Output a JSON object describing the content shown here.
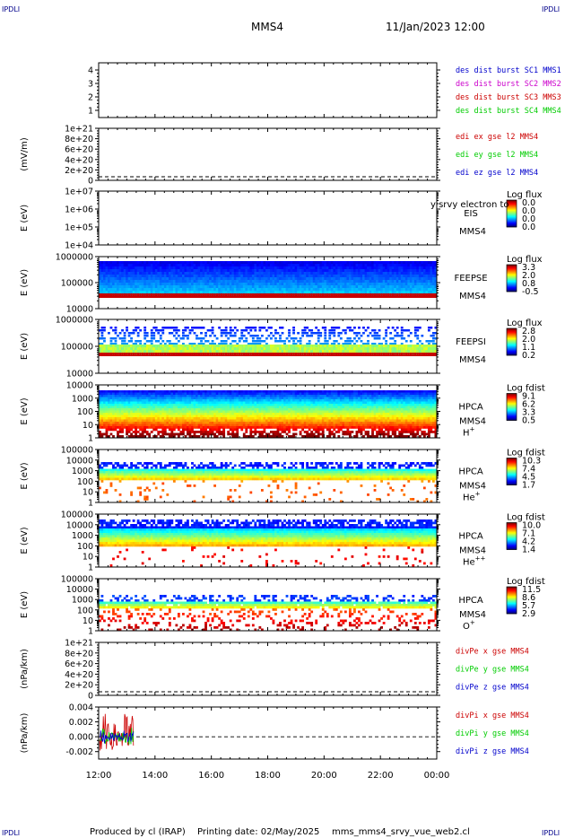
{
  "header": {
    "corner_label": "IPDLI",
    "spacecraft": "MMS4",
    "datetime": "11/Jan/2023 12:00"
  },
  "footer": {
    "produced_by": "Produced by cl (IRAP)",
    "printing_date": "Printing date: 02/May/2025",
    "script_name": "mms_mms4_srvy_vue_web2.cl"
  },
  "colors": {
    "blue": "#0000cc",
    "magenta": "#cc00cc",
    "red": "#cc0000",
    "green": "#00cc00"
  },
  "chart_data": [
    {
      "type": "line",
      "id": "des-dist",
      "yticks": [
        "1",
        "2",
        "3",
        "4"
      ],
      "ylim": [
        0.5,
        4.5
      ],
      "ylabel": "",
      "legend": [
        {
          "text": "des dist burst SC1 MMS1",
          "color": "#0000cc"
        },
        {
          "text": "des dist burst SC2 MMS2",
          "color": "#cc00cc"
        },
        {
          "text": "des dist burst SC3 MMS3",
          "color": "#cc0000"
        },
        {
          "text": "des dist burst SC4 MMS4",
          "color": "#00cc00"
        }
      ]
    },
    {
      "type": "line",
      "id": "edi",
      "ylabel": "(mV/m)",
      "yticks": [
        "0",
        "2e+20",
        "4e+20",
        "6e+20",
        "8e+20",
        "1e+21"
      ],
      "ylim": [
        0,
        1e+21
      ],
      "zero_line": true,
      "legend": [
        {
          "text": "edi ex gse l2 MMS4",
          "color": "#cc0000"
        },
        {
          "text": "edi ey gse l2 MMS4",
          "color": "#00cc00"
        },
        {
          "text": "edi ez gse l2 MMS4",
          "color": "#0000cc"
        }
      ]
    },
    {
      "type": "heatmap",
      "id": "eis",
      "ylabel": "E (eV)",
      "yticks": [
        "1e+04",
        "1e+05",
        "1e+06",
        "1e+07"
      ],
      "labels": [
        "EIS",
        "MMS4"
      ],
      "overlay_text": "y srvy electron to",
      "colorbar": {
        "title": "Log flux",
        "ticks": [
          "0.0",
          "0.0",
          "0.0",
          "0.0"
        ]
      },
      "fill": "empty"
    },
    {
      "type": "heatmap",
      "id": "feeps-e",
      "ylabel": "E (eV)",
      "yticks": [
        "10000",
        "100000",
        "1000000"
      ],
      "labels": [
        "FEEPSE",
        "MMS4"
      ],
      "colorbar": {
        "title": "Log flux",
        "ticks": [
          "3.3",
          "2.0",
          "0.8",
          "-0.5"
        ]
      },
      "fill": "feepse"
    },
    {
      "type": "heatmap",
      "id": "feeps-i",
      "ylabel": "E (eV)",
      "yticks": [
        "10000",
        "100000",
        "1000000"
      ],
      "labels": [
        "FEEPSI",
        "MMS4"
      ],
      "colorbar": {
        "title": "Log flux",
        "ticks": [
          "2.8",
          "2.0",
          "1.1",
          "0.2"
        ]
      },
      "fill": "feepsi"
    },
    {
      "type": "heatmap",
      "id": "hpca-h",
      "ylabel": "E (eV)",
      "yticks": [
        "1",
        "10",
        "100",
        "1000",
        "10000"
      ],
      "labels": [
        "HPCA",
        "MMS4"
      ],
      "species": {
        "base": "H",
        "sup": "+"
      },
      "colorbar": {
        "title": "Log fdist",
        "ticks": [
          "9.1",
          "6.2",
          "3.3",
          "0.5"
        ]
      },
      "fill": "hplus"
    },
    {
      "type": "heatmap",
      "id": "hpca-he",
      "ylabel": "E (eV)",
      "yticks": [
        "1",
        "10",
        "100",
        "1000",
        "10000",
        "100000"
      ],
      "labels": [
        "HPCA",
        "MMS4"
      ],
      "species": {
        "base": "He",
        "sup": "+"
      },
      "colorbar": {
        "title": "Log fdist",
        "ticks": [
          "10.3",
          "7.4",
          "4.5",
          "1.7"
        ]
      },
      "fill": "heplus"
    },
    {
      "type": "heatmap",
      "id": "hpca-hepp",
      "ylabel": "E (eV)",
      "yticks": [
        "1",
        "10",
        "100",
        "1000",
        "10000",
        "100000"
      ],
      "labels": [
        "HPCA",
        "MMS4"
      ],
      "species": {
        "base": "He",
        "sup": "++"
      },
      "colorbar": {
        "title": "Log fdist",
        "ticks": [
          "10.0",
          "7.1",
          "4.2",
          "1.4"
        ]
      },
      "fill": "heplusplus"
    },
    {
      "type": "heatmap",
      "id": "hpca-o",
      "ylabel": "E (eV)",
      "yticks": [
        "1",
        "10",
        "100",
        "1000",
        "10000",
        "100000"
      ],
      "labels": [
        "HPCA",
        "MMS4"
      ],
      "species": {
        "base": "O",
        "sup": "+"
      },
      "colorbar": {
        "title": "Log fdist",
        "ticks": [
          "11.5",
          "8.6",
          "5.7",
          "2.9"
        ]
      },
      "fill": "oplus"
    },
    {
      "type": "line",
      "id": "divpe",
      "ylabel": "(nPa/km)",
      "yticks": [
        "0",
        "2e+20",
        "4e+20",
        "6e+20",
        "8e+20",
        "1e+21"
      ],
      "ylim": [
        0,
        1e+21
      ],
      "zero_line": true,
      "legend": [
        {
          "text": "divPe x gse MMS4",
          "color": "#cc0000"
        },
        {
          "text": "divPe y gse MMS4",
          "color": "#00cc00"
        },
        {
          "text": "divPe z gse MMS4",
          "color": "#0000cc"
        }
      ]
    },
    {
      "type": "line",
      "id": "divpi",
      "ylabel": "(nPa/km)",
      "yticks": [
        "-0.002",
        "0.000",
        "0.002",
        "0.004"
      ],
      "ylim": [
        -0.003,
        0.004
      ],
      "zero_line": true,
      "data_extent": [
        "12:00",
        "13:15"
      ],
      "legend": [
        {
          "text": "divPi x gse MMS4",
          "color": "#cc0000"
        },
        {
          "text": "divPi y gse MMS4",
          "color": "#00cc00"
        },
        {
          "text": "divPi z gse MMS4",
          "color": "#0000cc"
        }
      ]
    }
  ],
  "time_axis": {
    "ticks": [
      "12:00",
      "14:00",
      "16:00",
      "18:00",
      "20:00",
      "22:00",
      "00:00"
    ],
    "range": [
      "11/Jan/2023 12:00",
      "12/Jan/2023 00:00"
    ]
  }
}
